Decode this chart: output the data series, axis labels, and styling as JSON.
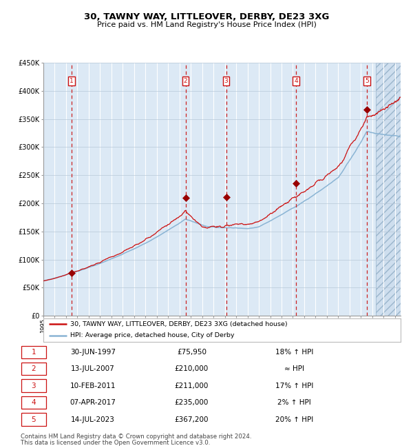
{
  "title": "30, TAWNY WAY, LITTLEOVER, DERBY, DE23 3XG",
  "subtitle": "Price paid vs. HM Land Registry's House Price Index (HPI)",
  "legend_line1": "30, TAWNY WAY, LITTLEOVER, DERBY, DE23 3XG (detached house)",
  "legend_line2": "HPI: Average price, detached house, City of Derby",
  "footer1": "Contains HM Land Registry data © Crown copyright and database right 2024.",
  "footer2": "This data is licensed under the Open Government Licence v3.0.",
  "hpi_color": "#8ab4d4",
  "price_color": "#cc1111",
  "marker_color": "#990000",
  "background_color": "#dce9f5",
  "y_max": 450000,
  "y_min": 0,
  "x_min": 1995.0,
  "x_max": 2026.5,
  "hatch_start": 2024.3,
  "sales": [
    {
      "num": 1,
      "date": "30-JUN-1997",
      "price": 75950,
      "hpi_rel": "18% ↑ HPI",
      "year": 1997.5
    },
    {
      "num": 2,
      "date": "13-JUL-2007",
      "price": 210000,
      "hpi_rel": "≈ HPI",
      "year": 2007.54
    },
    {
      "num": 3,
      "date": "10-FEB-2011",
      "price": 211000,
      "hpi_rel": "17% ↑ HPI",
      "year": 2011.12
    },
    {
      "num": 4,
      "date": "07-APR-2017",
      "price": 235000,
      "hpi_rel": "2% ↑ HPI",
      "year": 2017.27
    },
    {
      "num": 5,
      "date": "14-JUL-2023",
      "price": 367200,
      "hpi_rel": "20% ↑ HPI",
      "year": 2023.54
    }
  ]
}
